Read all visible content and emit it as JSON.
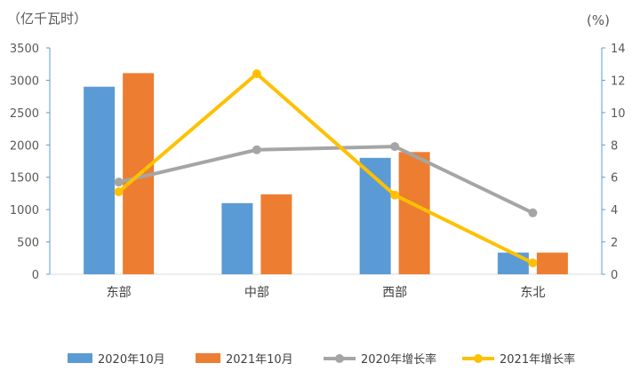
{
  "chart_data": {
    "type": "bar+line",
    "left_axis_unit": "（亿千瓦时）",
    "right_axis_unit": "(%)",
    "categories": [
      "东部",
      "中部",
      "西部",
      "东北"
    ],
    "ylim_left": [
      0,
      3500
    ],
    "yticks_left": [
      0,
      500,
      1000,
      1500,
      2000,
      2500,
      3000,
      3500
    ],
    "ylim_right": [
      0,
      14
    ],
    "yticks_right": [
      0,
      2,
      4,
      6,
      8,
      10,
      12,
      14
    ],
    "grid": false,
    "legend_position": "bottom",
    "series": [
      {
        "name": "2020年10月",
        "type": "bar",
        "axis": "left",
        "color": "#5b9bd5",
        "values": [
          2900,
          1100,
          1800,
          335
        ]
      },
      {
        "name": "2021年10月",
        "type": "bar",
        "axis": "left",
        "color": "#ed7d31",
        "values": [
          3110,
          1235,
          1890,
          335
        ]
      },
      {
        "name": "2020年增长率",
        "type": "line",
        "axis": "right",
        "color": "#a5a5a5",
        "values": [
          5.7,
          7.7,
          7.9,
          3.8
        ]
      },
      {
        "name": "2021年增长率",
        "type": "line",
        "axis": "right",
        "color": "#ffc000",
        "values": [
          5.1,
          12.4,
          4.9,
          0.7
        ]
      }
    ]
  }
}
